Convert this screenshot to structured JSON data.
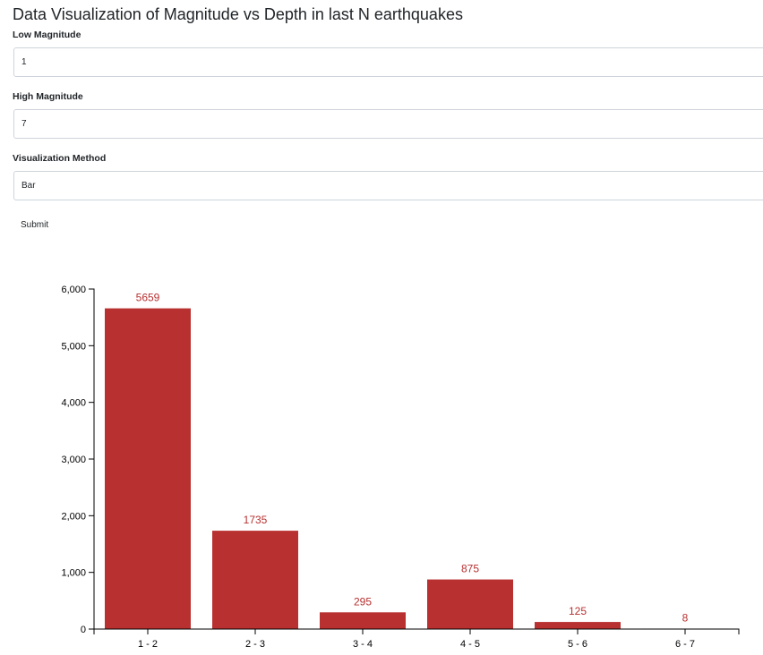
{
  "page": {
    "title": "Data Visualization of Magnitude vs Depth in last N earthquakes"
  },
  "form": {
    "low_magnitude": {
      "label": "Low Magnitude",
      "value": "1"
    },
    "high_magnitude": {
      "label": "High Magnitude",
      "value": "7"
    },
    "visualization_method": {
      "label": "Visualization Method",
      "value": "Bar"
    },
    "submit_label": "Submit"
  },
  "colors": {
    "bar": "#b83030",
    "bar_label": "#b83030",
    "axis": "#000000"
  },
  "chart_data": {
    "type": "bar",
    "title": "",
    "xlabel": "",
    "ylabel": "",
    "categories": [
      "1 - 2",
      "2 - 3",
      "3 - 4",
      "4 - 5",
      "5 - 6",
      "6 - 7"
    ],
    "values": [
      5659,
      1735,
      295,
      875,
      125,
      8
    ],
    "data_labels": [
      "5659",
      "1735",
      "295",
      "875",
      "125",
      "8"
    ],
    "ylim": [
      0,
      6000
    ],
    "yticks": [
      0,
      1000,
      2000,
      3000,
      4000,
      5000,
      6000
    ],
    "ytick_labels": [
      "0",
      "1,000",
      "2,000",
      "3,000",
      "4,000",
      "5,000",
      "6,000"
    ],
    "grid": false,
    "legend": "none"
  }
}
